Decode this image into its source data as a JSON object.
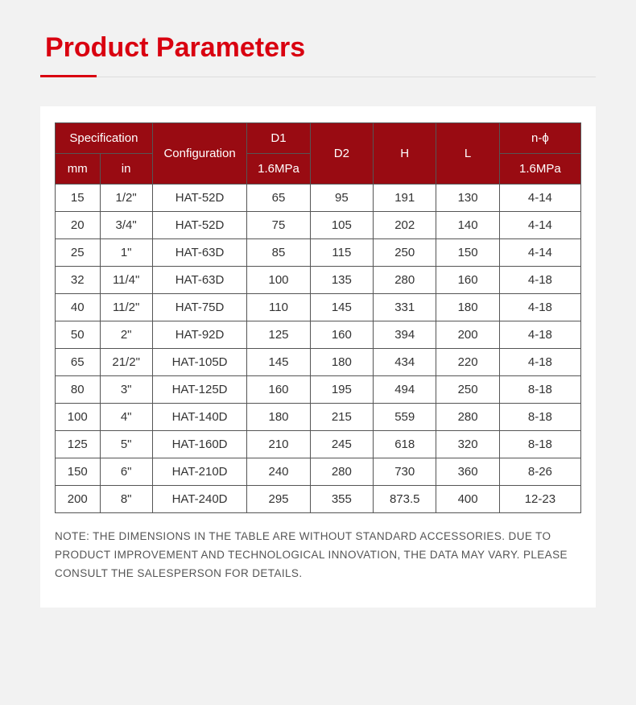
{
  "page": {
    "title": "Product Parameters",
    "title_color": "#d90010",
    "background_color": "#f2f2f2",
    "card_background": "#ffffff",
    "underline_accent_color": "#d90010",
    "underline_rest_color": "#dddddd"
  },
  "table": {
    "header_bg": "#990b12",
    "header_text_color": "#ffffff",
    "border_color": "#555555",
    "cell_text_color": "#333333",
    "col_widths_pct": [
      8.5,
      10,
      18,
      12,
      12,
      12,
      12,
      15.5
    ],
    "header": {
      "spec_group": "Specification",
      "spec_mm": "mm",
      "spec_in": "in",
      "config": "Configuration",
      "d1_top": "D1",
      "d1_sub": "1.6MPa",
      "d2": "D2",
      "h": "H",
      "l": "L",
      "nphi_top": "n-ϕ",
      "nphi_sub": "1.6MPa"
    },
    "rows": [
      {
        "mm": "15",
        "in": "1/2\"",
        "config": "HAT-52D",
        "d1": "65",
        "d2": "95",
        "h": "191",
        "l": "130",
        "nphi": "4-14"
      },
      {
        "mm": "20",
        "in": "3/4\"",
        "config": "HAT-52D",
        "d1": "75",
        "d2": "105",
        "h": "202",
        "l": "140",
        "nphi": "4-14"
      },
      {
        "mm": "25",
        "in": "1\"",
        "config": "HAT-63D",
        "d1": "85",
        "d2": "115",
        "h": "250",
        "l": "150",
        "nphi": "4-14"
      },
      {
        "mm": "32",
        "in": "11/4\"",
        "config": "HAT-63D",
        "d1": "100",
        "d2": "135",
        "h": "280",
        "l": "160",
        "nphi": "4-18"
      },
      {
        "mm": "40",
        "in": "11/2\"",
        "config": "HAT-75D",
        "d1": "110",
        "d2": "145",
        "h": "331",
        "l": "180",
        "nphi": "4-18"
      },
      {
        "mm": "50",
        "in": "2\"",
        "config": "HAT-92D",
        "d1": "125",
        "d2": "160",
        "h": "394",
        "l": "200",
        "nphi": "4-18"
      },
      {
        "mm": "65",
        "in": "21/2\"",
        "config": "HAT-105D",
        "d1": "145",
        "d2": "180",
        "h": "434",
        "l": "220",
        "nphi": "4-18"
      },
      {
        "mm": "80",
        "in": "3\"",
        "config": "HAT-125D",
        "d1": "160",
        "d2": "195",
        "h": "494",
        "l": "250",
        "nphi": "8-18"
      },
      {
        "mm": "100",
        "in": "4\"",
        "config": "HAT-140D",
        "d1": "180",
        "d2": "215",
        "h": "559",
        "l": "280",
        "nphi": "8-18"
      },
      {
        "mm": "125",
        "in": "5\"",
        "config": "HAT-160D",
        "d1": "210",
        "d2": "245",
        "h": "618",
        "l": "320",
        "nphi": "8-18"
      },
      {
        "mm": "150",
        "in": "6\"",
        "config": "HAT-210D",
        "d1": "240",
        "d2": "280",
        "h": "730",
        "l": "360",
        "nphi": "8-26"
      },
      {
        "mm": "200",
        "in": "8\"",
        "config": "HAT-240D",
        "d1": "295",
        "d2": "355",
        "h": "873.5",
        "l": "400",
        "nphi": "12-23"
      }
    ]
  },
  "note": "NOTE: THE DIMENSIONS IN THE TABLE ARE WITHOUT STANDARD ACCESSORIES. DUE TO PRODUCT IMPROVEMENT AND TECHNOLOGICAL INNOVATION, THE DATA MAY VARY. PLEASE CONSULT THE SALESPERSON FOR DETAILS."
}
